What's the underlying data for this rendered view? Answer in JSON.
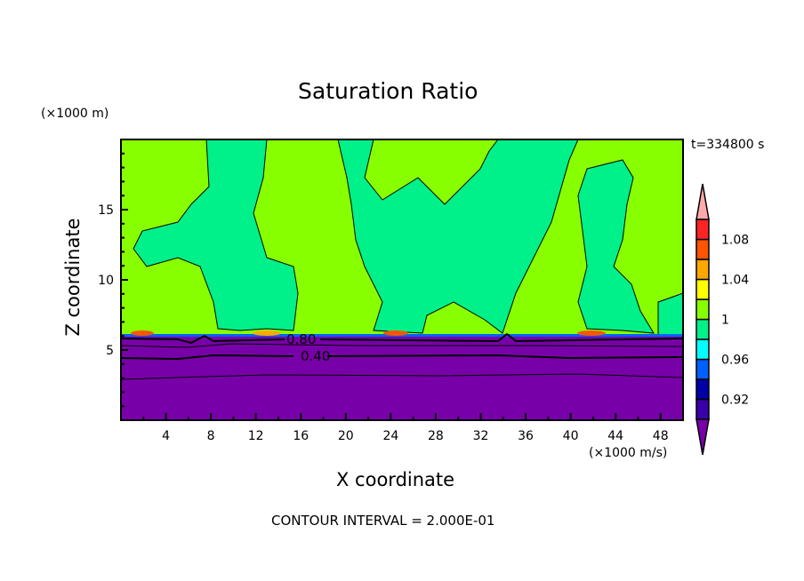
{
  "chart_data": {
    "type": "contour",
    "title": "Saturation Ratio",
    "xlabel": "X coordinate",
    "ylabel": "Z coordinate",
    "x_units": "(×1000 m/s)",
    "y_units": "(×1000 m)",
    "xlim": [
      0,
      50
    ],
    "ylim": [
      0,
      20
    ],
    "x_ticks": [
      4,
      8,
      12,
      16,
      20,
      24,
      28,
      32,
      36,
      40,
      44,
      48
    ],
    "y_ticks": [
      5,
      10,
      15
    ],
    "time_label": "t=334800 s",
    "footer": "CONTOUR INTERVAL = 2.000E-01",
    "contour_labels": [
      {
        "text": "0.80",
        "x": 16.2,
        "z": 5.6
      },
      {
        "text": "0.40",
        "x": 17.0,
        "z": 4.5
      }
    ],
    "colorbar": {
      "levels": [
        0.9,
        0.92,
        0.94,
        0.96,
        0.98,
        1,
        1.02,
        1.04,
        1.06,
        1.08,
        1.1
      ],
      "tick_labels": [
        "0.92",
        "0.96",
        "1",
        "1.04",
        "1.08"
      ],
      "tick_values": [
        0.92,
        0.96,
        1.0,
        1.04,
        1.08
      ],
      "colors": [
        "#3a00a8",
        "#0000a8",
        "#0060ff",
        "#00ffff",
        "#00f08a",
        "#88ff00",
        "#ffff00",
        "#ffa800",
        "#ff5400",
        "#ff2424"
      ],
      "under_color": "#7800a8",
      "over_color": "#ffaaaa"
    }
  }
}
